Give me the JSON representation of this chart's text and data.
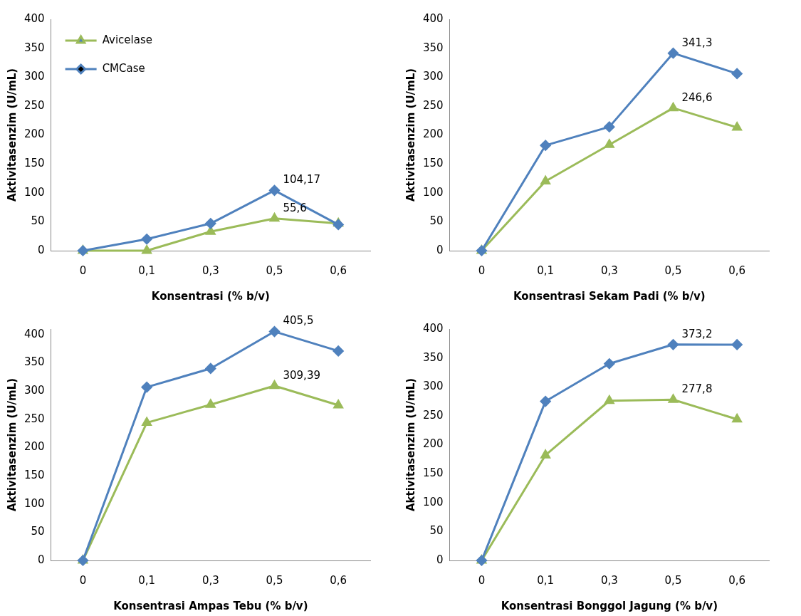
{
  "chart_data": [
    {
      "type": "line",
      "xlabel": "Konsentrasi (% b/v)",
      "ylabel": "Aktivitasenzim (U/mL)",
      "categories": [
        "0",
        "0,1",
        "0,3",
        "0,5",
        "0,6"
      ],
      "ylim": [
        0,
        400
      ],
      "yticks": [
        0,
        50,
        100,
        150,
        200,
        250,
        300,
        350,
        400
      ],
      "grid": false,
      "legend": "top left",
      "series": [
        {
          "name": "Avicelase",
          "color": "#9bbb59",
          "marker": "triangle",
          "values": [
            0,
            0,
            33,
            55.6,
            47
          ],
          "value_labels": [
            null,
            null,
            null,
            "55,6",
            null
          ]
        },
        {
          "name": "CMCase",
          "color": "#4f81bd",
          "marker": "diamond",
          "values": [
            0,
            20,
            47,
            104.17,
            45
          ],
          "value_labels": [
            null,
            null,
            null,
            "104,17",
            null
          ]
        }
      ]
    },
    {
      "type": "line",
      "xlabel": "Konsentrasi Sekam Padi (% b/v)",
      "ylabel": "Aktivitasenzim (U/mL)",
      "categories": [
        "0",
        "0,1",
        "0,3",
        "0,5",
        "0,6"
      ],
      "ylim": [
        0,
        400
      ],
      "yticks": [
        0,
        50,
        100,
        150,
        200,
        250,
        300,
        350,
        400
      ],
      "grid": false,
      "legend": false,
      "series": [
        {
          "color": "#9bbb59",
          "marker": "triangle",
          "values": [
            0,
            120,
            183,
            246.6,
            213
          ],
          "value_labels": [
            null,
            null,
            null,
            "246,6",
            null
          ]
        },
        {
          "color": "#4f81bd",
          "marker": "diamond",
          "values": [
            0,
            182,
            214,
            341.3,
            306
          ],
          "value_labels": [
            null,
            null,
            null,
            "341,3",
            null
          ]
        }
      ]
    },
    {
      "type": "line",
      "xlabel": "Konsentrasi Ampas Tebu (% b/v)",
      "ylabel": "Aktivitasenzim (U/mL)",
      "categories": [
        "0",
        "0,1",
        "0,3",
        "0,5",
        "0,6"
      ],
      "ylim": [
        0,
        410
      ],
      "yticks": [
        0,
        50,
        100,
        150,
        200,
        250,
        300,
        350,
        400
      ],
      "grid": false,
      "legend": false,
      "series": [
        {
          "color": "#9bbb59",
          "marker": "triangle",
          "values": [
            0,
            244,
            276,
            309.39,
            275
          ],
          "value_labels": [
            null,
            null,
            null,
            "309,39",
            null
          ]
        },
        {
          "color": "#4f81bd",
          "marker": "diamond",
          "values": [
            0,
            307,
            340,
            405.5,
            371
          ],
          "value_labels": [
            null,
            null,
            null,
            "405,5",
            null
          ]
        }
      ]
    },
    {
      "type": "line",
      "xlabel": "Konsentrasi Bonggol Jagung (% b/v)",
      "ylabel": "Aktivitasenzim (U/mL)",
      "categories": [
        "0",
        "0,1",
        "0,3",
        "0,5",
        "0,6"
      ],
      "ylim": [
        0,
        400
      ],
      "yticks": [
        0,
        50,
        100,
        150,
        200,
        250,
        300,
        350,
        400
      ],
      "grid": false,
      "legend": false,
      "series": [
        {
          "color": "#9bbb59",
          "marker": "triangle",
          "values": [
            0,
            182,
            276,
            277.8,
            244
          ],
          "value_labels": [
            null,
            null,
            null,
            "277,8",
            null
          ]
        },
        {
          "color": "#4f81bd",
          "marker": "diamond",
          "values": [
            0,
            275,
            340,
            373.2,
            373
          ],
          "value_labels": [
            null,
            null,
            null,
            "373,2",
            null
          ]
        }
      ]
    }
  ]
}
